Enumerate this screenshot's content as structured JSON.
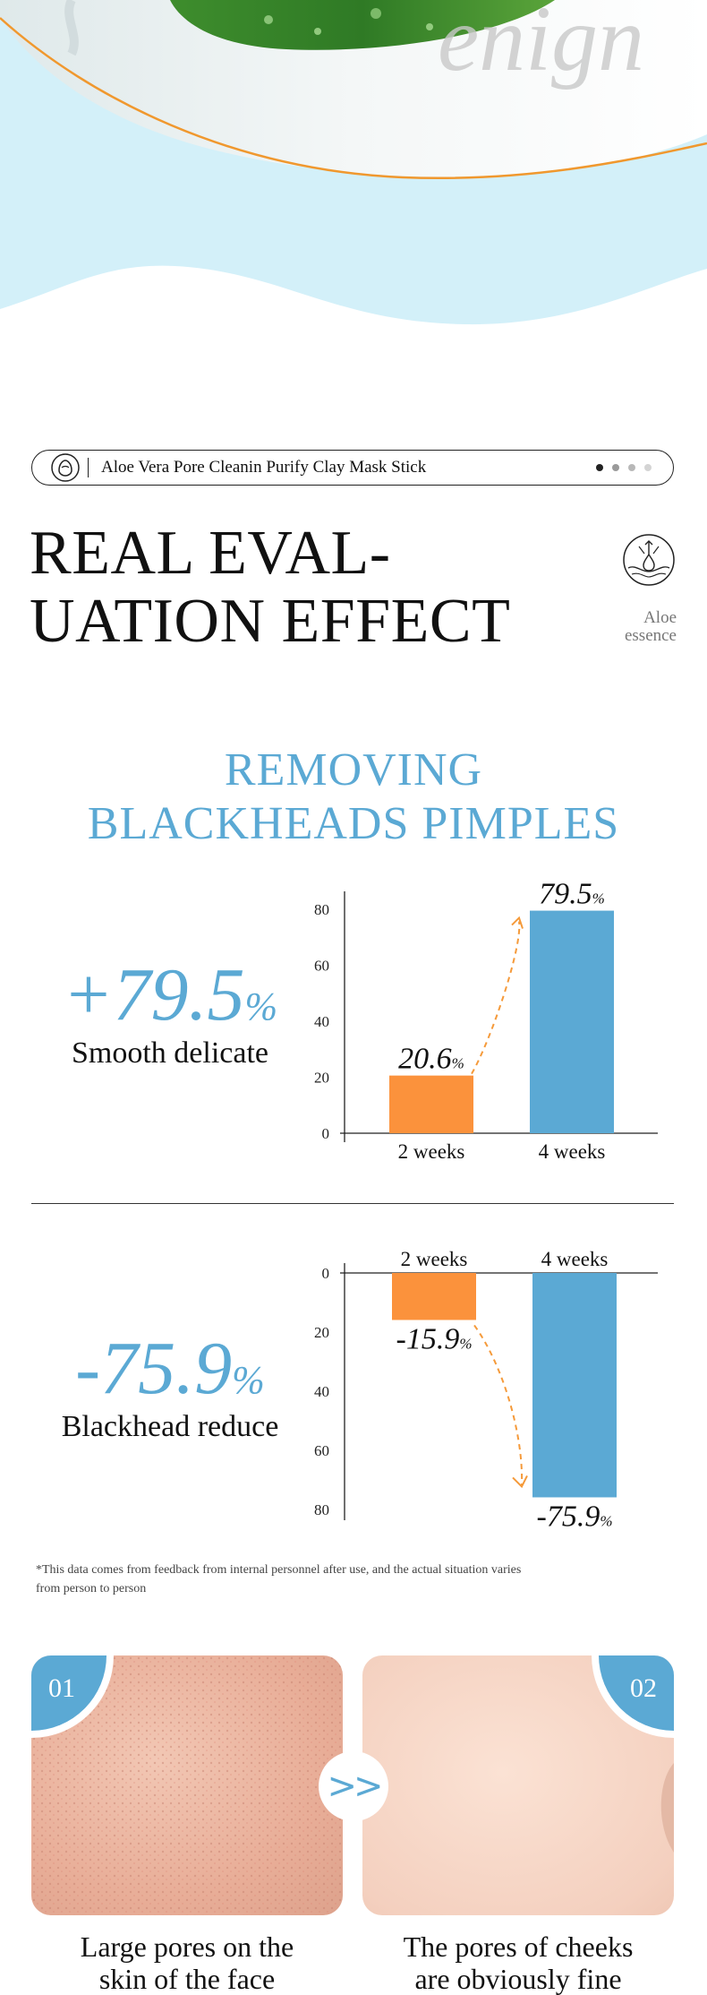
{
  "hero": {
    "script_word": "enign"
  },
  "product_bar": {
    "name": "Aloe Vera Pore Cleanin Purify Clay Mask Stick",
    "page_dots": [
      "active",
      "inactive",
      "inactive",
      "inactive"
    ]
  },
  "headline": {
    "line1": "REAL EVAL-",
    "line2": "UATION EFFECT"
  },
  "badge": {
    "line1": "Aloe",
    "line2": "essence",
    "icon": "aloe-droplet-icon"
  },
  "section": {
    "line1": "REMOVING",
    "line2": "BLACKHEADS PIMPLES"
  },
  "stat1": {
    "value": "+79.5",
    "unit": "%",
    "caption": "Smooth delicate"
  },
  "stat2": {
    "value": "-75.9",
    "unit": "%",
    "caption": "Blackhead reduce"
  },
  "chart_data": [
    {
      "type": "bar",
      "categories": [
        "2 weeks",
        "4 weeks"
      ],
      "values": [
        20.6,
        79.5
      ],
      "data_labels": [
        "20.6%",
        "79.5%"
      ],
      "yticks": [
        0,
        20,
        40,
        60,
        80
      ],
      "ylim": [
        0,
        80
      ],
      "colors": [
        "#fb923c",
        "#5ba9d4"
      ],
      "annotation": "dashed arrow from 2 weeks bar to 4 weeks bar"
    },
    {
      "type": "bar",
      "categories": [
        "2 weeks",
        "4 weeks"
      ],
      "values": [
        -15.9,
        -75.9
      ],
      "data_labels": [
        "-15.9%",
        "-75.9%"
      ],
      "yticks": [
        0,
        20,
        40,
        60,
        80
      ],
      "ylim": [
        0,
        80
      ],
      "axis": "inverted, bars extend downward from 0",
      "colors": [
        "#fb923c",
        "#5ba9d4"
      ],
      "annotation": "dashed arrow from 2 weeks bar to 4 weeks bar"
    }
  ],
  "note": "*This data comes from feedback from internal personnel after use, and the actual situation varies from person to person",
  "compare": {
    "before": {
      "num": "01",
      "caption_l1": "Large pores on the",
      "caption_l2": "skin of the face"
    },
    "after": {
      "num": "02",
      "caption_l1": "The pores of cheeks",
      "caption_l2": "are obviously fine"
    },
    "arrow": ">>"
  },
  "colors": {
    "accent_blue": "#5ba9d4",
    "accent_orange": "#fb923c",
    "sky": "#d3f0f9"
  }
}
